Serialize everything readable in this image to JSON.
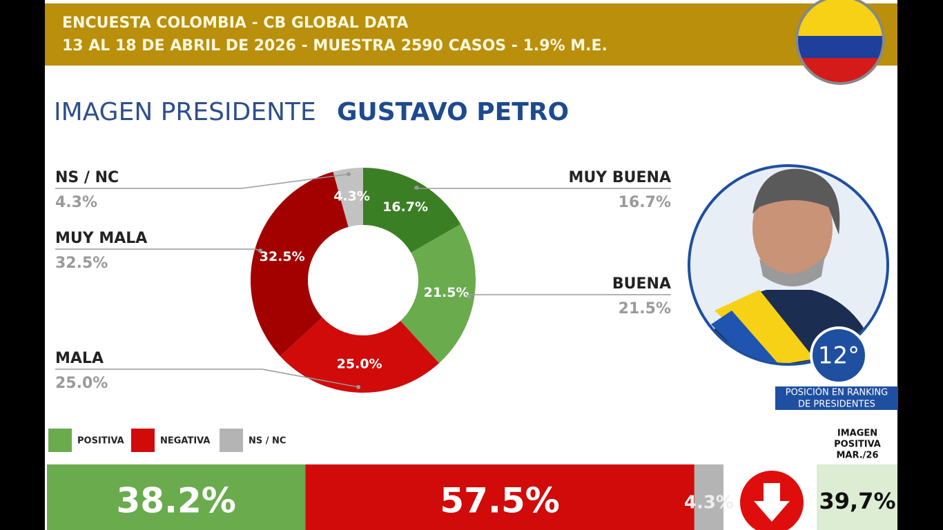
{
  "header": {
    "line1": "ENCUESTA COLOMBIA - CB GLOBAL DATA",
    "line2": "13 AL 18 DE ABRIL DE 2026 - MUESTRA 2590 CASOS - 1.9% M.E."
  },
  "chart_data": [
    {
      "type": "donut",
      "title": "IMAGEN PRESIDENTE",
      "subtitle": "GUSTAVO PETRO",
      "categories": [
        "MUY BUENA",
        "BUENA",
        "MALA",
        "MUY MALA",
        "NS / NC"
      ],
      "values": [
        16.7,
        21.5,
        25.0,
        32.5,
        4.3
      ],
      "value_labels": [
        "16.7%",
        "21.5%",
        "25.0%",
        "32.5%",
        "4.3%"
      ],
      "colors": [
        "#3b7f24",
        "#6aab4e",
        "#d10a0a",
        "#a30000",
        "#c2c2c2"
      ]
    },
    {
      "type": "stacked-bar",
      "series": [
        {
          "name": "POSITIVA",
          "color": "#6aab4e",
          "values": [
            38.2
          ],
          "value_labels": [
            "38.2%"
          ]
        },
        {
          "name": "NEGATIVA",
          "color": "#d10a0a",
          "values": [
            57.5
          ],
          "value_labels": [
            "57.5%"
          ]
        },
        {
          "name": "NS / NC",
          "color": "#b4b4b4",
          "values": [
            4.3
          ],
          "value_labels": [
            "4.3%"
          ]
        }
      ]
    }
  ],
  "ranking": {
    "position": "12°",
    "label": [
      "POSICIÓN EN RANKING",
      "DE PRESIDENTES"
    ]
  },
  "previous": {
    "label": [
      "IMAGEN",
      "POSITIVA",
      "MAR./26"
    ],
    "value_label": "39,7%"
  }
}
